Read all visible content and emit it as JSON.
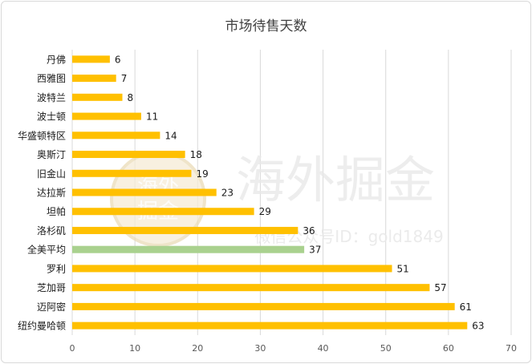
{
  "watermark": {
    "main_text": "海外掘金",
    "sub_text": "微信公众号ID：gold1849",
    "seal_top": "海外",
    "seal_bottom": "掘金"
  },
  "colors": {
    "bar": "#FFC000",
    "highlight": "#A9D18E",
    "grid": "#D9D9D9"
  },
  "chart_data": {
    "type": "bar",
    "orientation": "horizontal",
    "title": "市场待售天数",
    "xlabel": "",
    "ylabel": "",
    "xlim": [
      0,
      70
    ],
    "xticks": [
      0,
      10,
      20,
      30,
      40,
      50,
      60,
      70
    ],
    "grid": true,
    "legend": "none",
    "categories": [
      "丹佛",
      "西雅图",
      "波特兰",
      "波士顿",
      "华盛顿特区",
      "奥斯汀",
      "旧金山",
      "达拉斯",
      "坦帕",
      "洛杉矶",
      "全美平均",
      "罗利",
      "芝加哥",
      "迈阿密",
      "纽约曼哈顿"
    ],
    "values": [
      6,
      7,
      8,
      11,
      14,
      18,
      19,
      23,
      29,
      36,
      37,
      51,
      57,
      61,
      63
    ],
    "highlight_category": "全美平均"
  }
}
